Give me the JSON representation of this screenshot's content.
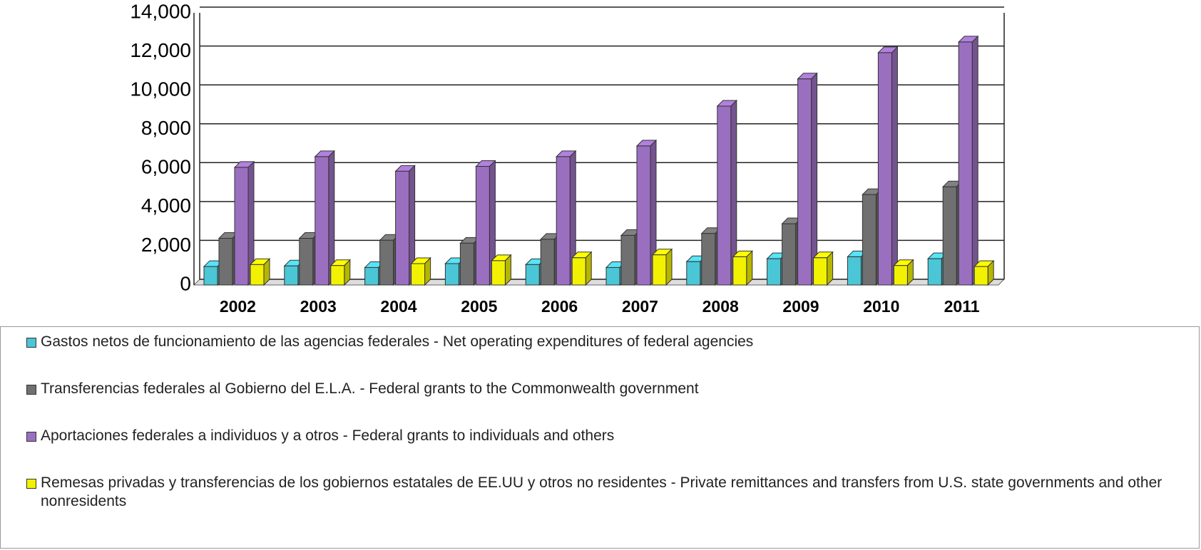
{
  "chart_data": {
    "type": "bar",
    "categories": [
      "2002",
      "2003",
      "2004",
      "2005",
      "2006",
      "2007",
      "2008",
      "2009",
      "2010",
      "2011"
    ],
    "series": [
      {
        "name": "Gastos netos de funcionamiento de las agencias federales - Net operating expenditures of federal agencies",
        "color": "#4bc6d6",
        "values": [
          950,
          980,
          900,
          1100,
          1050,
          900,
          1200,
          1350,
          1450,
          1350
        ]
      },
      {
        "name": "Transferencias federales al Gobierno del E.L.A. - Federal grants to the Commonwealth government",
        "color": "#707070",
        "values": [
          2400,
          2400,
          2300,
          2150,
          2350,
          2550,
          2650,
          3150,
          4650,
          5050
        ]
      },
      {
        "name": "Aportaciones federales a individuos y a otros - Federal grants to individuals and others",
        "color": "#9b6fc0",
        "values": [
          6050,
          6600,
          5850,
          6100,
          6600,
          7150,
          9200,
          10600,
          11950,
          12500
        ]
      },
      {
        "name": "Remesas privadas y transferencias de los gobiernos estatales de EE.UU y otros no residentes - Private remittances and transfers from U.S. state governments and other nonresidents",
        "color": "#f2f200",
        "values": [
          1050,
          1000,
          1100,
          1250,
          1400,
          1550,
          1450,
          1400,
          1000,
          950
        ]
      }
    ],
    "ylim": [
      0,
      14000
    ],
    "yticks": [
      0,
      {
        "value": 2000,
        "label": "2,000"
      },
      {
        "value": 4000,
        "label": "4,000"
      },
      {
        "value": 6000,
        "label": "6,000"
      },
      {
        "value": 8000,
        "label": "8,000"
      },
      {
        "value": 10000,
        "label": "10,000"
      },
      {
        "value": 12000,
        "label": "12,000"
      },
      {
        "value": 14000,
        "label": "14,000"
      }
    ],
    "grid": true
  }
}
